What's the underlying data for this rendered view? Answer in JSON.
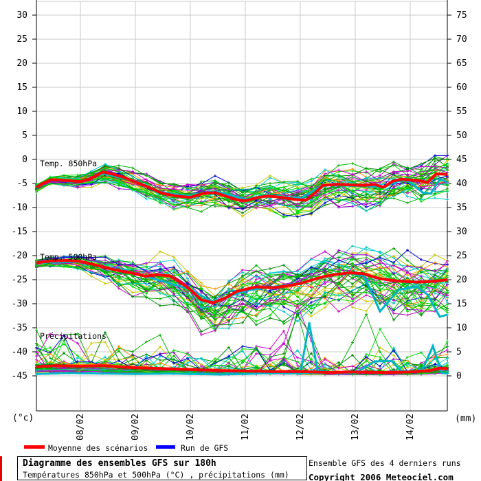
{
  "chart_data": {
    "type": "line",
    "title": "Diagramme des ensembles GFS sur 180h",
    "subtitle": "Températures 850hPa et 500hPa (°C) , précipitations (mm)",
    "grid": true,
    "left_axis": {
      "unit_label": "(°c)",
      "min": -45,
      "max": 30,
      "step": 5,
      "ticks": [
        30,
        25,
        20,
        15,
        10,
        5,
        0,
        -5,
        -10,
        -15,
        -20,
        -25,
        -30,
        -35,
        -40,
        -45
      ]
    },
    "right_axis": {
      "unit_label": "(mm)",
      "min": 0,
      "max": 75,
      "step": 5,
      "ticks": [
        75,
        70,
        65,
        60,
        55,
        50,
        45,
        40,
        35,
        30,
        25,
        20,
        15,
        10,
        5,
        0
      ]
    },
    "x_labels": [
      "08/02",
      "09/02",
      "10/02",
      "11/02",
      "12/02",
      "13/02",
      "14/02"
    ],
    "legend": [
      {
        "label": "Moyenne des scénarios",
        "color": "#ff0000"
      },
      {
        "label": "Run de GFS",
        "color": "#0000ff"
      }
    ],
    "colors": {
      "mean": "#ff0000",
      "run": "#00b4c8",
      "grid": "#c8c8c8",
      "axis": "#000000",
      "members": [
        "#00b400",
        "#00dc00",
        "#008c00",
        "#c800c8",
        "#00c8c8",
        "#c8c800",
        "#00b400",
        "#9600d2",
        "#00dc00",
        "#00c8c8",
        "#c800c8",
        "#008c00",
        "#0000d2",
        "#c8c800",
        "#00b400",
        "#ff8c00",
        "#00c8c8",
        "#c800c8",
        "#00dc00",
        "#008c00"
      ]
    },
    "seed": 1234,
    "groups": [
      {
        "name": "Temp. 850hPa",
        "axis": "left",
        "unit": "°C",
        "members": 42,
        "neg_skew": 1.15,
        "pos_skew": 1.0,
        "clamp": [
          -12.5,
          0.8
        ],
        "mean": [
          [
            53,
            -5.8
          ],
          [
            62,
            -5.0
          ],
          [
            75,
            -4.2
          ],
          [
            95,
            -4.4
          ],
          [
            117,
            -4.6
          ],
          [
            130,
            -4.1
          ],
          [
            150,
            -2.6
          ],
          [
            165,
            -3.1
          ],
          [
            180,
            -3.7
          ],
          [
            197,
            -4.7
          ],
          [
            215,
            -5.7
          ],
          [
            235,
            -7.0
          ],
          [
            255,
            -7.6
          ],
          [
            277,
            -7.9
          ],
          [
            295,
            -7.1
          ],
          [
            313,
            -6.9
          ],
          [
            330,
            -7.7
          ],
          [
            345,
            -8.4
          ],
          [
            357,
            -8.6
          ],
          [
            375,
            -7.9
          ],
          [
            390,
            -7.6
          ],
          [
            410,
            -7.9
          ],
          [
            428,
            -8.3
          ],
          [
            445,
            -8.5
          ],
          [
            458,
            -7.0
          ],
          [
            470,
            -5.4
          ],
          [
            490,
            -5.2
          ],
          [
            510,
            -5.3
          ],
          [
            530,
            -5.4
          ],
          [
            545,
            -5.2
          ],
          [
            558,
            -5.8
          ],
          [
            572,
            -4.5
          ],
          [
            585,
            -4.1
          ],
          [
            597,
            -4.3
          ],
          [
            610,
            -4.4
          ],
          [
            622,
            -4.8
          ],
          [
            635,
            -3.0
          ],
          [
            651,
            -3.1
          ]
        ],
        "run": [
          [
            53,
            -5.6
          ],
          [
            75,
            -4.3
          ],
          [
            117,
            -4.7
          ],
          [
            150,
            -2.9
          ],
          [
            197,
            -4.5
          ],
          [
            235,
            -6.8
          ],
          [
            277,
            -7.7
          ],
          [
            313,
            -6.6
          ],
          [
            357,
            -8.3
          ],
          [
            390,
            -7.4
          ],
          [
            437,
            -8.1
          ],
          [
            470,
            -5.3
          ],
          [
            517,
            -5.5
          ],
          [
            558,
            -5.7
          ],
          [
            585,
            -4.2
          ],
          [
            597,
            -4.7
          ],
          [
            615,
            -6.9
          ],
          [
            627,
            -7.1
          ],
          [
            640,
            -4.1
          ],
          [
            651,
            -4.7
          ]
        ],
        "spread": [
          [
            53,
            1.0
          ],
          [
            117,
            1.1
          ],
          [
            197,
            1.7
          ],
          [
            277,
            2.2
          ],
          [
            357,
            2.2
          ],
          [
            437,
            2.7
          ],
          [
            517,
            2.8
          ],
          [
            597,
            3.1
          ],
          [
            651,
            3.4
          ]
        ]
      },
      {
        "name": "Temp. 500hPa",
        "axis": "left",
        "unit": "°C",
        "members": 42,
        "neg_skew": 1.55,
        "pos_skew": 1.05,
        "clamp": [
          -39.5,
          -18.0
        ],
        "mean": [
          [
            53,
            -21.5
          ],
          [
            75,
            -21.1
          ],
          [
            100,
            -21.0
          ],
          [
            117,
            -21.2
          ],
          [
            140,
            -22.0
          ],
          [
            165,
            -22.9
          ],
          [
            180,
            -23.3
          ],
          [
            197,
            -23.8
          ],
          [
            212,
            -24.3
          ],
          [
            228,
            -24.0
          ],
          [
            247,
            -24.2
          ],
          [
            262,
            -25.5
          ],
          [
            277,
            -27.1
          ],
          [
            293,
            -29.2
          ],
          [
            310,
            -29.8
          ],
          [
            328,
            -28.8
          ],
          [
            345,
            -27.4
          ],
          [
            373,
            -26.5
          ],
          [
            397,
            -26.7
          ],
          [
            417,
            -26.3
          ],
          [
            437,
            -25.8
          ],
          [
            455,
            -25.0
          ],
          [
            473,
            -24.3
          ],
          [
            490,
            -23.9
          ],
          [
            507,
            -23.6
          ],
          [
            527,
            -23.7
          ],
          [
            553,
            -24.8
          ],
          [
            580,
            -25.3
          ],
          [
            607,
            -25.5
          ],
          [
            625,
            -25.4
          ],
          [
            640,
            -25.2
          ],
          [
            651,
            -25.0
          ]
        ],
        "run": [
          [
            53,
            -21.4
          ],
          [
            117,
            -21.3
          ],
          [
            197,
            -23.7
          ],
          [
            277,
            -27.0
          ],
          [
            310,
            -29.7
          ],
          [
            357,
            -27.3
          ],
          [
            437,
            -25.7
          ],
          [
            473,
            -24.4
          ],
          [
            507,
            -23.5
          ],
          [
            530,
            -24.2
          ],
          [
            553,
            -31.6
          ],
          [
            580,
            -27.1
          ],
          [
            607,
            -26.5
          ],
          [
            622,
            -28.1
          ],
          [
            640,
            -32.7
          ],
          [
            651,
            -32.3
          ]
        ],
        "spread": [
          [
            53,
            0.8
          ],
          [
            117,
            0.9
          ],
          [
            197,
            2.3
          ],
          [
            277,
            3.6
          ],
          [
            357,
            3.3
          ],
          [
            437,
            3.4
          ],
          [
            517,
            3.7
          ],
          [
            597,
            4.3
          ],
          [
            651,
            4.3
          ]
        ]
      },
      {
        "name": "Précipitations",
        "axis": "right",
        "unit": "mm",
        "members": 40,
        "clamp": [
          0,
          16
        ],
        "mean": [
          [
            53,
            1.9
          ],
          [
            80,
            2.1
          ],
          [
            117,
            2.0
          ],
          [
            150,
            2.1
          ],
          [
            180,
            1.8
          ],
          [
            197,
            1.7
          ],
          [
            240,
            1.5
          ],
          [
            277,
            1.3
          ],
          [
            320,
            1.1
          ],
          [
            357,
            1.0
          ],
          [
            400,
            0.9
          ],
          [
            437,
            0.9
          ],
          [
            480,
            0.7
          ],
          [
            517,
            0.8
          ],
          [
            560,
            0.7
          ],
          [
            597,
            0.8
          ],
          [
            625,
            1.1
          ],
          [
            640,
            1.6
          ],
          [
            651,
            1.5
          ]
        ],
        "run": [
          [
            53,
            0.4
          ],
          [
            100,
            0.6
          ],
          [
            150,
            0.5
          ],
          [
            197,
            0.4
          ],
          [
            250,
            0.5
          ],
          [
            277,
            0.4
          ],
          [
            320,
            0.3
          ],
          [
            357,
            0.4
          ],
          [
            400,
            0.6
          ],
          [
            437,
            0.5
          ],
          [
            450,
            11.0
          ],
          [
            462,
            1.2
          ],
          [
            490,
            0.5
          ],
          [
            517,
            0.6
          ],
          [
            545,
            3.0
          ],
          [
            570,
            3.1
          ],
          [
            583,
            1.1
          ],
          [
            597,
            0.8
          ],
          [
            615,
            1.3
          ],
          [
            630,
            6.2
          ],
          [
            643,
            0.6
          ],
          [
            651,
            0.5
          ]
        ],
        "spread": [
          [
            53,
            2.4
          ],
          [
            117,
            2.4
          ],
          [
            197,
            2.1
          ],
          [
            277,
            1.6
          ],
          [
            357,
            2.1
          ],
          [
            437,
            3.0
          ],
          [
            517,
            2.5
          ],
          [
            597,
            2.1
          ],
          [
            651,
            2.4
          ]
        ]
      }
    ]
  },
  "footer": {
    "title": "Diagramme des ensembles GFS sur 180h",
    "subtitle": "Températures 850hPa et 500hPa (°C) , précipitations (mm)",
    "runs_note": "Ensemble GFS des 4 derniers runs",
    "copyright": "Copyright 2006 Meteociel.com"
  }
}
